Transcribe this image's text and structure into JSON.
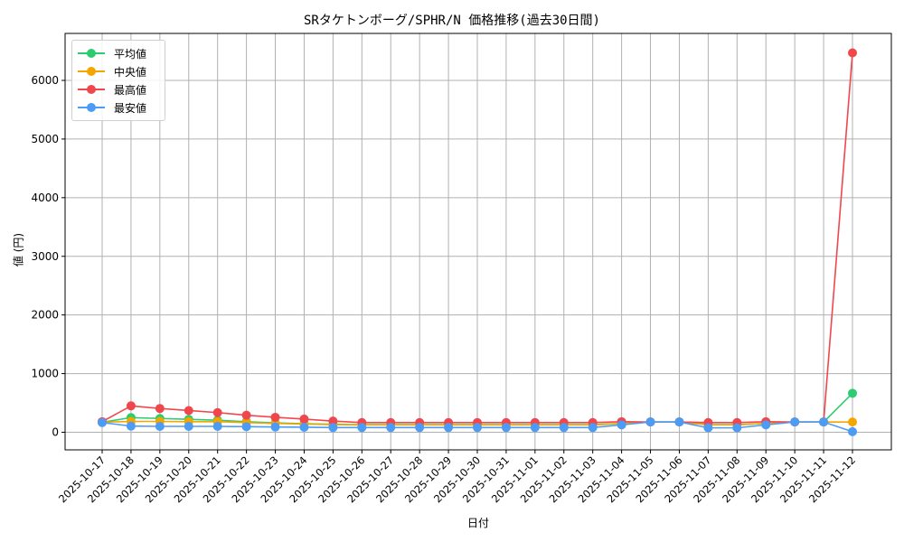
{
  "chart_data": {
    "type": "line",
    "title": "SRタケトンボーグ/SPHR/N 価格推移(過去30日間)",
    "xlabel": "日付",
    "ylabel": "値 (円)",
    "ylim": [
      -300,
      6600
    ],
    "yticks": [
      0,
      1000,
      2000,
      3000,
      4000,
      5000,
      6000
    ],
    "grid": true,
    "legend_position": "upper left",
    "x": [
      "2025-10-17",
      "2025-10-18",
      "2025-10-19",
      "2025-10-20",
      "2025-10-21",
      "2025-10-22",
      "2025-10-23",
      "2025-10-24",
      "2025-10-25",
      "2025-10-26",
      "2025-10-27",
      "2025-10-28",
      "2025-10-29",
      "2025-10-30",
      "2025-10-31",
      "2025-11-01",
      "2025-11-02",
      "2025-11-03",
      "2025-11-04",
      "2025-11-05",
      "2025-11-06",
      "2025-11-07",
      "2025-11-08",
      "2025-11-09",
      "2025-11-10",
      "2025-11-11",
      "2025-11-12"
    ],
    "series": [
      {
        "name": "平均値",
        "color": "#2ecc71",
        "values": [
          170,
          250,
          235,
          220,
          205,
          180,
          160,
          145,
          135,
          130,
          130,
          130,
          130,
          130,
          130,
          130,
          130,
          130,
          150,
          175,
          175,
          130,
          130,
          150,
          175,
          175,
          665
        ]
      },
      {
        "name": "中央値",
        "color": "#f5a500",
        "values": [
          170,
          185,
          185,
          180,
          180,
          165,
          150,
          140,
          130,
          125,
          125,
          125,
          125,
          125,
          125,
          125,
          125,
          125,
          145,
          175,
          175,
          125,
          125,
          150,
          175,
          175,
          175
        ]
      },
      {
        "name": "最高値",
        "color": "#f0474d",
        "values": [
          180,
          450,
          405,
          370,
          335,
          290,
          255,
          225,
          190,
          165,
          165,
          165,
          165,
          165,
          165,
          165,
          165,
          165,
          180,
          175,
          175,
          165,
          165,
          180,
          175,
          175,
          6470
        ]
      },
      {
        "name": "最安値",
        "color": "#4c9bf5",
        "values": [
          165,
          105,
          100,
          100,
          100,
          95,
          90,
          85,
          80,
          80,
          80,
          80,
          80,
          80,
          80,
          80,
          80,
          80,
          125,
          175,
          175,
          75,
          75,
          125,
          175,
          175,
          10
        ]
      }
    ]
  }
}
